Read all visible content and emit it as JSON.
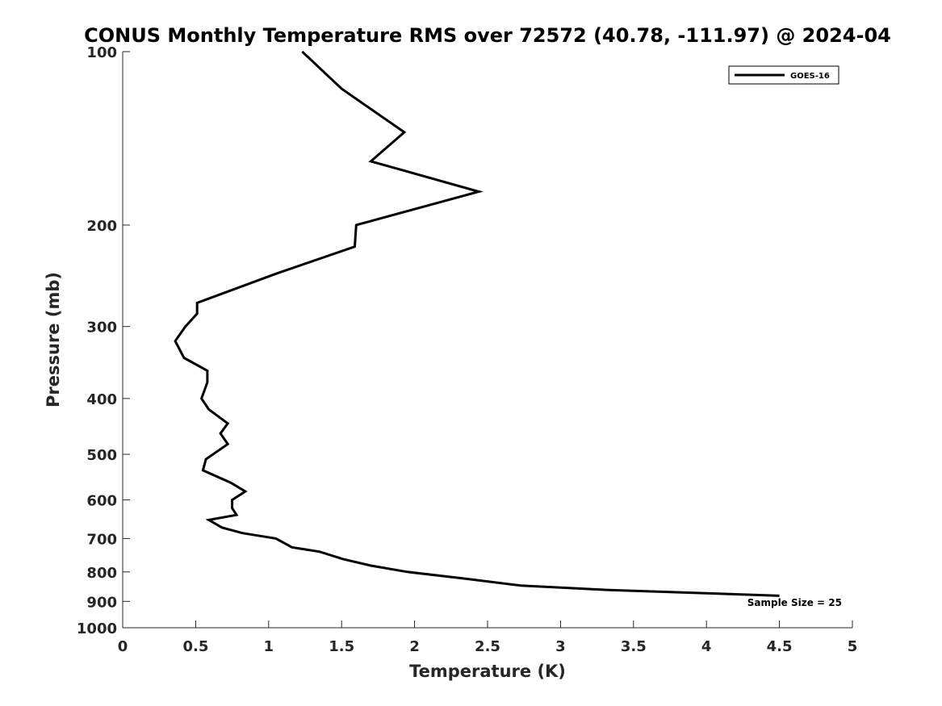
{
  "chart_data": {
    "type": "line",
    "title": "CONUS Monthly Temperature RMS over 72572 (40.78, -111.97) @ 2024-04",
    "xlabel": "Temperature (K)",
    "ylabel": "Pressure (mb)",
    "xlim": [
      0,
      5
    ],
    "ylim": [
      100,
      1000
    ],
    "y_scale": "log",
    "y_reversed": true,
    "xticks": [
      0,
      0.5,
      1,
      1.5,
      2,
      2.5,
      3,
      3.5,
      4,
      4.5,
      5
    ],
    "xtick_labels": [
      "0",
      "0.5",
      "1",
      "1.5",
      "2",
      "2.5",
      "3",
      "3.5",
      "4",
      "4.5",
      "5"
    ],
    "yticks": [
      100,
      200,
      300,
      400,
      500,
      600,
      700,
      800,
      900,
      1000
    ],
    "ytick_labels": [
      "100",
      "200",
      "300",
      "400",
      "500",
      "600",
      "700",
      "800",
      "900",
      "1000"
    ],
    "grid": false,
    "legend_position": "top-right",
    "annotation": "Sample Size = 25",
    "series": [
      {
        "name": "GOES-16",
        "color": "#000000",
        "points": [
          [
            1.23,
            100
          ],
          [
            1.5,
            116
          ],
          [
            1.93,
            138
          ],
          [
            1.7,
            155
          ],
          [
            2.44,
            175
          ],
          [
            1.6,
            200
          ],
          [
            1.59,
            218
          ],
          [
            1.05,
            243
          ],
          [
            0.51,
            273
          ],
          [
            0.51,
            285
          ],
          [
            0.43,
            300
          ],
          [
            0.36,
            318
          ],
          [
            0.42,
            340
          ],
          [
            0.58,
            358
          ],
          [
            0.58,
            375
          ],
          [
            0.54,
            400
          ],
          [
            0.59,
            418
          ],
          [
            0.72,
            442
          ],
          [
            0.67,
            460
          ],
          [
            0.72,
            480
          ],
          [
            0.57,
            510
          ],
          [
            0.55,
            533
          ],
          [
            0.74,
            560
          ],
          [
            0.84,
            580
          ],
          [
            0.75,
            600
          ],
          [
            0.75,
            620
          ],
          [
            0.78,
            637
          ],
          [
            0.59,
            650
          ],
          [
            0.68,
            670
          ],
          [
            0.82,
            685
          ],
          [
            1.05,
            700
          ],
          [
            1.16,
            725
          ],
          [
            1.35,
            738
          ],
          [
            1.51,
            760
          ],
          [
            1.7,
            780
          ],
          [
            1.95,
            800
          ],
          [
            2.35,
            822
          ],
          [
            2.73,
            845
          ],
          [
            3.33,
            860
          ],
          [
            4.1,
            873
          ],
          [
            4.5,
            880
          ]
        ]
      }
    ]
  }
}
